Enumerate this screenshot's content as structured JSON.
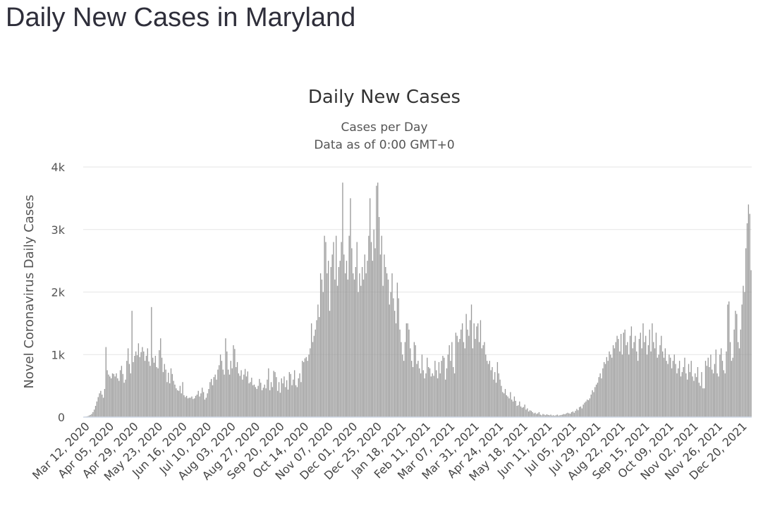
{
  "page": {
    "title": "Daily New Cases in Maryland"
  },
  "chart_data": {
    "type": "bar",
    "title": "Daily New Cases",
    "subtitle": [
      "Cases per Day",
      "Data as of 0:00 GMT+0"
    ],
    "ylabel": "Novel Coronavirus Daily Cases",
    "xlabel": "",
    "ylim": [
      0,
      4000
    ],
    "yticks": [
      {
        "value": 0,
        "label": "0"
      },
      {
        "value": 1000,
        "label": "1k"
      },
      {
        "value": 2000,
        "label": "2k"
      },
      {
        "value": 3000,
        "label": "3k"
      },
      {
        "value": 4000,
        "label": "4k"
      }
    ],
    "x_start": "Mar 12, 2020",
    "x_end": "Dec 31, 2021",
    "x_tick_labels": [
      "Mar 12, 2020",
      "Apr 05, 2020",
      "Apr 29, 2020",
      "May 23, 2020",
      "Jun 16, 2020",
      "Jul 10, 2020",
      "Aug 03, 2020",
      "Aug 27, 2020",
      "Sep 20, 2020",
      "Oct 14, 2020",
      "Nov 07, 2020",
      "Dec 01, 2020",
      "Dec 25, 2020",
      "Jan 18, 2021",
      "Feb 11, 2021",
      "Mar 07, 2021",
      "Mar 31, 2021",
      "Apr 24, 2021",
      "May 18, 2021",
      "Jun 11, 2021",
      "Jul 05, 2021",
      "Jul 29, 2021",
      "Aug 22, 2021",
      "Sep 15, 2021",
      "Oct 09, 2021",
      "Nov 02, 2021",
      "Nov 26, 2021",
      "Dec 20, 2021"
    ],
    "series": [
      {
        "name": "Daily Cases",
        "color": "#999999",
        "values": [
          5,
          8,
          10,
          15,
          25,
          35,
          50,
          80,
          120,
          180,
          250,
          320,
          380,
          420,
          360,
          310,
          450,
          1120,
          750,
          680,
          650,
          620,
          700,
          690,
          650,
          700,
          620,
          580,
          750,
          820,
          690,
          550,
          600,
          900,
          1100,
          850,
          700,
          1700,
          880,
          980,
          1050,
          990,
          1180,
          960,
          1040,
          1120,
          1050,
          900,
          980,
          1100,
          890,
          820,
          1760,
          950,
          870,
          980,
          800,
          780,
          1070,
          1260,
          950,
          720,
          850,
          760,
          560,
          710,
          540,
          780,
          690,
          580,
          520,
          460,
          430,
          420,
          500,
          380,
          560,
          350,
          320,
          340,
          300,
          310,
          310,
          330,
          290,
          300,
          340,
          360,
          420,
          330,
          380,
          470,
          400,
          280,
          310,
          380,
          450,
          560,
          610,
          510,
          640,
          680,
          600,
          760,
          830,
          1000,
          900,
          760,
          680,
          1260,
          1050,
          760,
          680,
          900,
          780,
          1150,
          1090,
          800,
          880,
          700,
          660,
          750,
          600,
          680,
          770,
          650,
          730,
          540,
          560,
          630,
          510,
          520,
          480,
          450,
          500,
          610,
          550,
          430,
          470,
          520,
          460,
          600,
          780,
          430,
          560,
          480,
          740,
          720,
          640,
          420,
          560,
          390,
          620,
          540,
          650,
          480,
          590,
          440,
          720,
          690,
          510,
          600,
          750,
          510,
          480,
          620,
          700,
          560,
          900,
          880,
          940,
          960,
          900,
          1000,
          1100,
          1500,
          1200,
          1300,
          1400,
          1550,
          1800,
          1600,
          2300,
          2200,
          2000,
          2900,
          2800,
          2300,
          2500,
          1700,
          2400,
          2600,
          2800,
          2200,
          2900,
          2100,
          2400,
          2500,
          2800,
          3750,
          2600,
          2300,
          2500,
          2200,
          2900,
          3500,
          2700,
          2300,
          2200,
          2400,
          2800,
          2000,
          2300,
          2100,
          2400,
          2200,
          2600,
          2300,
          2500,
          2900,
          3500,
          2800,
          2500,
          3000,
          2700,
          3700,
          3750,
          3200,
          2600,
          2900,
          2100,
          2600,
          2400,
          2300,
          2200,
          1800,
          2000,
          2300,
          1900,
          1700,
          1500,
          2150,
          1900,
          1400,
          1200,
          1000,
          900,
          1200,
          1500,
          1500,
          1400,
          1100,
          900,
          800,
          1200,
          1150,
          850,
          900,
          780,
          700,
          1000,
          750,
          620,
          700,
          950,
          800,
          780,
          650,
          700,
          660,
          900,
          750,
          620,
          880,
          700,
          900,
          980,
          950,
          600,
          780,
          1000,
          1150,
          900,
          1200,
          800,
          700,
          1350,
          1300,
          1200,
          1250,
          1400,
          1500,
          1200,
          1100,
          1650,
          1400,
          1300,
          1550,
          1800,
          1100,
          1500,
          1250,
          1450,
          1500,
          1200,
          1550,
          1100,
          1150,
          1200,
          1000,
          900,
          850,
          900,
          750,
          800,
          600,
          720,
          550,
          880,
          700,
          600,
          500,
          400,
          380,
          450,
          350,
          330,
          300,
          400,
          280,
          250,
          330,
          260,
          180,
          190,
          250,
          170,
          150,
          160,
          200,
          120,
          140,
          90,
          110,
          100,
          80,
          60,
          70,
          50,
          60,
          80,
          40,
          30,
          50,
          40,
          30,
          45,
          35,
          30,
          40,
          25,
          30,
          20,
          30,
          40,
          25,
          30,
          35,
          40,
          50,
          45,
          60,
          70,
          60,
          55,
          80,
          90,
          70,
          100,
          130,
          110,
          160,
          170,
          140,
          200,
          230,
          250,
          280,
          270,
          300,
          360,
          430,
          400,
          480,
          520,
          550,
          640,
          700,
          620,
          780,
          880,
          850,
          960,
          900,
          1050,
          1000,
          950,
          1150,
          1100,
          1200,
          1300,
          1250,
          1050,
          1330,
          1000,
          1350,
          1400,
          1150,
          1200,
          1000,
          1300,
          1450,
          1100,
          1200,
          1300,
          1050,
          900,
          1250,
          1350,
          1100,
          1500,
          1200,
          1300,
          1000,
          1150,
          1400,
          1050,
          1500,
          1200,
          1100,
          1350,
          950,
          1000,
          1150,
          1300,
          1050,
          950,
          1100,
          900,
          850,
          1000,
          950,
          780,
          900,
          1000,
          850,
          700,
          780,
          900,
          650,
          720,
          800,
          950,
          700,
          600,
          850,
          720,
          900,
          650,
          580,
          700,
          640,
          800,
          550,
          500,
          720,
          460,
          460,
          900,
          820,
          950,
          800,
          1000,
          760,
          700,
          850,
          1080,
          700,
          650,
          1000,
          1100,
          900,
          750,
          700,
          1050,
          1800,
          1850,
          1200,
          900,
          950,
          1400,
          1700,
          1650,
          1200,
          1100,
          1400,
          1800,
          2100,
          2000,
          2700,
          3100,
          3400,
          3250,
          2350
        ]
      }
    ]
  }
}
